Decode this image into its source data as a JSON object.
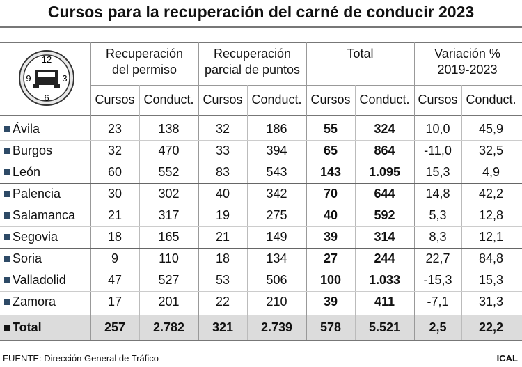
{
  "header": {
    "title": "Cursos para la recuperación del carné de conducir 2023"
  },
  "icon": {
    "numbers": [
      "12",
      "3",
      "6",
      "9"
    ]
  },
  "table": {
    "groups": [
      "Recuperación del permiso",
      "Recuperación parcial de puntos",
      "Total",
      "Variación % 2019-2023"
    ],
    "subheaders": [
      "Cursos",
      "Conduct.",
      "Cursos",
      "Conduct.",
      "Cursos",
      "Conduct.",
      "Cursos",
      "Conduct."
    ],
    "rows": [
      [
        "Ávila",
        "23",
        "138",
        "32",
        "186",
        "55",
        "324",
        "10,0",
        "45,9"
      ],
      [
        "Burgos",
        "32",
        "470",
        "33",
        "394",
        "65",
        "864",
        "-11,0",
        "32,5"
      ],
      [
        "León",
        "60",
        "552",
        "83",
        "543",
        "143",
        "1.095",
        "15,3",
        "4,9"
      ],
      [
        "Palencia",
        "30",
        "302",
        "40",
        "342",
        "70",
        "644",
        "14,8",
        "42,2"
      ],
      [
        "Salamanca",
        "21",
        "317",
        "19",
        "275",
        "40",
        "592",
        "5,3",
        "12,8"
      ],
      [
        "Segovia",
        "18",
        "165",
        "21",
        "149",
        "39",
        "314",
        "8,3",
        "12,1"
      ],
      [
        "Soria",
        "9",
        "110",
        "18",
        "134",
        "27",
        "244",
        "22,7",
        "84,8"
      ],
      [
        "Valladolid",
        "47",
        "527",
        "53",
        "506",
        "100",
        "1.033",
        "-15,3",
        "15,3"
      ],
      [
        "Zamora",
        "17",
        "201",
        "22",
        "210",
        "39",
        "411",
        "-7,1",
        "31,3"
      ]
    ],
    "total": [
      "Total",
      "257",
      "2.782",
      "321",
      "2.739",
      "578",
      "5.521",
      "2,5",
      "22,2"
    ]
  },
  "footer": {
    "source": "FUENTE: Dirección General de Tráfico",
    "brand": "ICAL"
  }
}
